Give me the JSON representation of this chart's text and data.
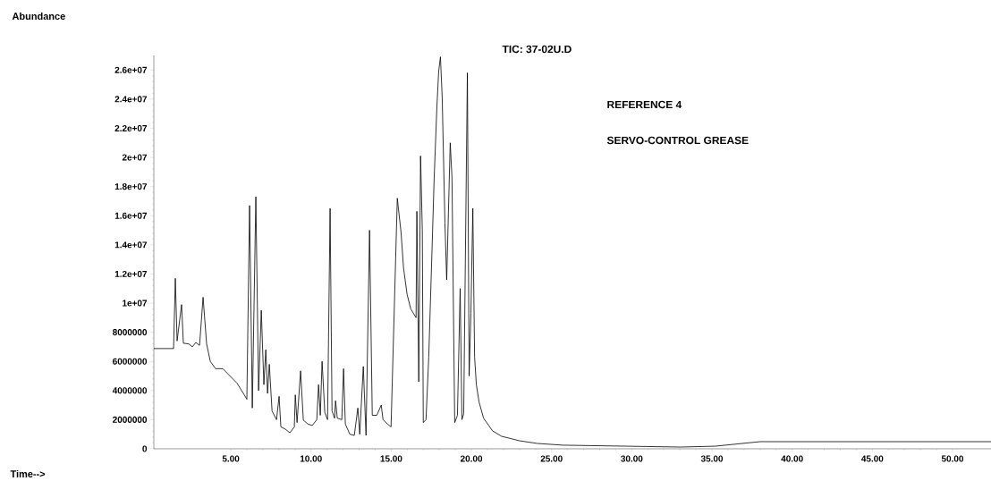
{
  "chart_data": {
    "type": "line",
    "title": "TIC: 37-02U.D",
    "annotations": [
      "Abundance",
      "Time-->",
      "REFERENCE 4",
      "SERVO-CONTROL GREASE"
    ],
    "color": "#000000",
    "marker": "none",
    "line_style": "solid",
    "xlim": [
      0.2,
      52.4
    ],
    "ylim": [
      0,
      27000000
    ],
    "xticks": [
      {
        "value": 5,
        "label": "5.00"
      },
      {
        "value": 10,
        "label": "10.00"
      },
      {
        "value": 15,
        "label": "15.00"
      },
      {
        "value": 20,
        "label": "20.00"
      },
      {
        "value": 25,
        "label": "25.00"
      },
      {
        "value": 30,
        "label": "30.00"
      },
      {
        "value": 35,
        "label": "35.00"
      },
      {
        "value": 40,
        "label": "40.00"
      },
      {
        "value": 45,
        "label": "45.00"
      },
      {
        "value": 50,
        "label": "50.00"
      }
    ],
    "yticks": [
      0,
      2000000,
      4000000,
      6000000,
      8000000,
      {
        "value": 10000000,
        "label": "1e+07"
      },
      {
        "value": 12000000,
        "label": "1.2e+07"
      },
      {
        "value": 14000000,
        "label": "1.4e+07"
      },
      {
        "value": 16000000,
        "label": "1.6e+07"
      },
      {
        "value": 18000000,
        "label": "1.8e+07"
      },
      {
        "value": 20000000,
        "label": "2e+07"
      },
      {
        "value": 22000000,
        "label": "2.2e+07"
      },
      {
        "value": 24000000,
        "label": "2.4e+07"
      },
      {
        "value": 26000000,
        "label": "2.6e+07"
      }
    ],
    "x": [
      0.2,
      1.43,
      1.54,
      1.65,
      1.93,
      2.04,
      2.38,
      2.6,
      2.82,
      3.05,
      3.27,
      3.49,
      3.72,
      4.05,
      4.5,
      5.39,
      5.84,
      6.0,
      6.17,
      6.34,
      6.56,
      6.73,
      6.9,
      7.06,
      7.18,
      7.29,
      7.4,
      7.57,
      7.85,
      8.01,
      8.12,
      8.4,
      8.68,
      8.96,
      9.02,
      9.13,
      9.35,
      9.52,
      9.8,
      10.08,
      10.36,
      10.47,
      10.58,
      10.69,
      10.86,
      11.03,
      11.19,
      11.31,
      11.47,
      11.53,
      11.64,
      11.92,
      12.03,
      12.14,
      12.42,
      12.7,
      12.92,
      13.04,
      13.26,
      13.43,
      13.65,
      13.82,
      14.1,
      14.38,
      14.49,
      14.77,
      14.99,
      15.38,
      15.61,
      15.77,
      15.99,
      16.22,
      16.44,
      16.55,
      16.6,
      16.72,
      16.83,
      16.94,
      17.0,
      17.17,
      17.34,
      17.51,
      17.68,
      17.85,
      17.96,
      18.07,
      18.18,
      18.35,
      18.46,
      18.68,
      18.79,
      18.96,
      19.13,
      19.3,
      19.41,
      19.52,
      19.75,
      19.86,
      19.97,
      20.09,
      20.2,
      20.31,
      20.48,
      20.76,
      21.32,
      21.88,
      23.0,
      24.1,
      25.7,
      33.0,
      35.2,
      38.0,
      52.4
    ],
    "values": [
      6880000,
      6880000,
      11700000,
      7400000,
      9900000,
      7250000,
      7200000,
      7000000,
      7300000,
      7100000,
      10400000,
      7200000,
      6000000,
      5500000,
      5500000,
      4500000,
      3700000,
      3400000,
      16700000,
      2800000,
      17300000,
      4000000,
      9500000,
      4400000,
      6800000,
      3800000,
      5800000,
      2600000,
      2000000,
      3600000,
      1500000,
      1350000,
      1100000,
      1500000,
      3700000,
      1800000,
      5350000,
      1970000,
      1700000,
      1600000,
      2000000,
      4400000,
      2300000,
      6000000,
      2500000,
      2000000,
      16500000,
      2600000,
      2100000,
      3300000,
      2100000,
      2000000,
      5500000,
      1700000,
      1000000,
      920000,
      2800000,
      1000000,
      5650000,
      920000,
      15000000,
      2300000,
      2300000,
      3000000,
      2000000,
      1700000,
      1500000,
      17200000,
      14900000,
      12400000,
      10600000,
      9600000,
      9200000,
      9000000,
      16300000,
      4600000,
      20100000,
      15000000,
      1800000,
      2000000,
      6300000,
      12400000,
      18600000,
      23500000,
      25900000,
      26900000,
      24100000,
      15500000,
      11600000,
      21000000,
      18600000,
      1800000,
      2300000,
      11000000,
      2000000,
      2400000,
      25800000,
      5000000,
      9300000,
      16500000,
      6300000,
      4400000,
      3200000,
      2100000,
      1230000,
      860000,
      550000,
      370000,
      250000,
      120000,
      180000,
      490000,
      490000
    ]
  }
}
